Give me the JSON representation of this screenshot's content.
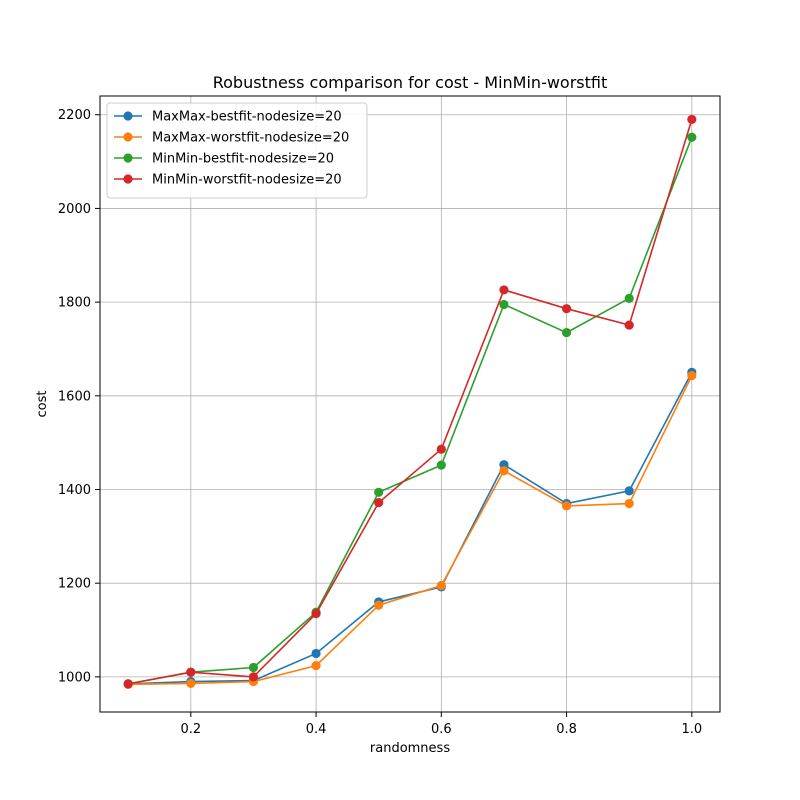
{
  "chart_data": {
    "type": "line",
    "title": "Robustness comparison for cost - MinMin-worstfit",
    "xlabel": "randomness",
    "ylabel": "cost",
    "xlim": [
      0.055,
      1.045
    ],
    "ylim": [
      925,
      2240
    ],
    "xticks": [
      0.2,
      0.4,
      0.6,
      0.8,
      1.0
    ],
    "xtick_labels": [
      "0.2",
      "0.4",
      "0.6",
      "0.8",
      "1.0"
    ],
    "yticks": [
      1000,
      1200,
      1400,
      1600,
      1800,
      2000,
      2200
    ],
    "ytick_labels": [
      "1000",
      "1200",
      "1400",
      "1600",
      "1800",
      "2000",
      "2200"
    ],
    "grid": true,
    "legend_position": "top-left",
    "x": [
      0.1,
      0.2,
      0.3,
      0.4,
      0.5,
      0.6,
      0.7,
      0.8,
      0.9,
      1.0
    ],
    "series": [
      {
        "name": "MaxMax-bestfit-nodesize=20",
        "color": "#1f77b4",
        "values": [
          985,
          990,
          992,
          1050,
          1160,
          1192,
          1453,
          1370,
          1397,
          1650
        ]
      },
      {
        "name": "MaxMax-worstfit-nodesize=20",
        "color": "#ff7f0e",
        "values": [
          984,
          986,
          990,
          1024,
          1153,
          1195,
          1440,
          1365,
          1370,
          1643
        ]
      },
      {
        "name": "MinMin-bestfit-nodesize=20",
        "color": "#2ca02c",
        "values": [
          985,
          1010,
          1020,
          1138,
          1394,
          1452,
          1795,
          1735,
          1808,
          2152
        ]
      },
      {
        "name": "MinMin-worstfit-nodesize=20",
        "color": "#d62728",
        "values": [
          985,
          1010,
          1000,
          1135,
          1372,
          1486,
          1826,
          1786,
          1751,
          2190
        ]
      }
    ]
  }
}
